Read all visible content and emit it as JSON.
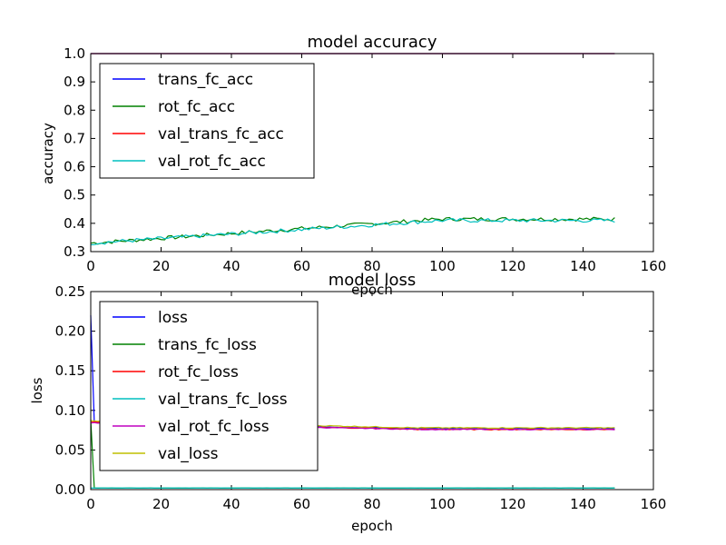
{
  "chart_data": [
    {
      "type": "line",
      "title": "model accuracy",
      "xlabel": "epoch",
      "ylabel": "accuracy",
      "xlim": [
        0,
        160
      ],
      "ylim": [
        0.3,
        1.0
      ],
      "xticks": [
        "0",
        "20",
        "40",
        "60",
        "80",
        "100",
        "120",
        "140",
        "160"
      ],
      "yticks": [
        "0.3",
        "0.4",
        "0.5",
        "0.6",
        "0.7",
        "0.8",
        "0.9",
        "1.0"
      ],
      "legend_position": "upper-left",
      "grid": false,
      "x": [
        0,
        149
      ],
      "series": [
        {
          "name": "trans_fc_acc",
          "color": "#0000ff",
          "shape": "const",
          "start": 1.0,
          "end": 1.0
        },
        {
          "name": "rot_fc_acc",
          "color": "#008000",
          "shape": "ramp",
          "start": 0.33,
          "end": 0.415
        },
        {
          "name": "val_trans_fc_acc",
          "color": "#ff0000",
          "shape": "const",
          "start": 1.0,
          "end": 1.0
        },
        {
          "name": "val_rot_fc_acc",
          "color": "#00bfbf",
          "shape": "ramp",
          "start": 0.33,
          "end": 0.41
        }
      ]
    },
    {
      "type": "line",
      "title": "model loss",
      "xlabel": "epoch",
      "ylabel": "loss",
      "xlim": [
        0,
        160
      ],
      "ylim": [
        0.0,
        0.25
      ],
      "xticks": [
        "0",
        "20",
        "40",
        "60",
        "80",
        "100",
        "120",
        "140",
        "160"
      ],
      "yticks": [
        "0.00",
        "0.05",
        "0.10",
        "0.15",
        "0.20",
        "0.25"
      ],
      "legend_position": "upper-left",
      "grid": false,
      "x": [
        0,
        149
      ],
      "series": [
        {
          "name": "loss",
          "color": "#0000ff",
          "shape": "decay",
          "start": 0.22,
          "mid": 0.085,
          "end": 0.077
        },
        {
          "name": "trans_fc_loss",
          "color": "#008000",
          "shape": "drop",
          "start": 0.088,
          "end": 0.002
        },
        {
          "name": "rot_fc_loss",
          "color": "#ff0000",
          "shape": "decay",
          "start": 0.085,
          "mid": 0.085,
          "end": 0.076
        },
        {
          "name": "val_trans_fc_loss",
          "color": "#00bfbf",
          "shape": "const",
          "start": 0.002,
          "end": 0.002
        },
        {
          "name": "val_rot_fc_loss",
          "color": "#bf00bf",
          "shape": "decay",
          "start": 0.084,
          "mid": 0.084,
          "end": 0.076
        },
        {
          "name": "val_loss",
          "color": "#bfbf00",
          "shape": "decay",
          "start": 0.087,
          "mid": 0.087,
          "end": 0.078
        }
      ]
    }
  ]
}
